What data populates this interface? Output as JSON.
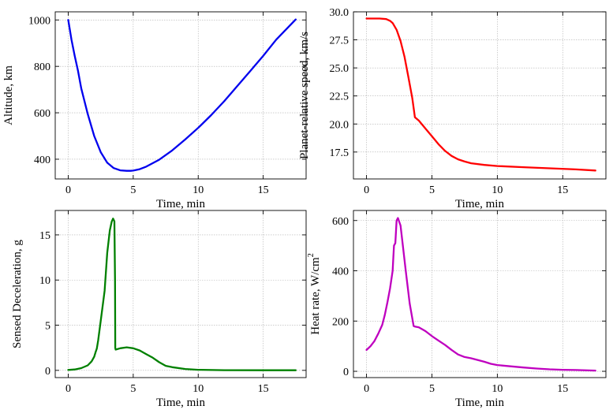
{
  "chart_data": [
    {
      "type": "line",
      "xlabel": "Time, min",
      "ylabel": "Altitude, km",
      "xlim": [
        -1.0,
        18.3
      ],
      "ylim": [
        315,
        1035
      ],
      "xticks": [
        0,
        5,
        10,
        15
      ],
      "yticks": [
        400,
        600,
        800,
        1000
      ],
      "yticklabels": [
        "400",
        "600",
        "800",
        "1000"
      ],
      "grid": true,
      "color": "#0000ee",
      "series": [
        {
          "x": [
            0,
            0.25,
            0.5,
            0.75,
            1.0,
            1.5,
            2.0,
            2.5,
            3.0,
            3.5,
            4.0,
            4.5,
            4.8,
            5.0,
            5.5,
            6.0,
            7.0,
            8.0,
            9.0,
            10.0,
            11.0,
            12.0,
            13.0,
            14.0,
            15.0,
            16.0,
            17.5
          ],
          "y": [
            1000,
            915,
            845,
            782,
            705,
            595,
            500,
            430,
            385,
            362,
            352,
            350,
            350,
            351,
            357,
            368,
            398,
            438,
            485,
            535,
            590,
            650,
            715,
            780,
            845,
            915,
            1002
          ]
        }
      ]
    },
    {
      "type": "line",
      "xlabel": "Time, min",
      "ylabel": "Planet-relative speed, km/s",
      "xlim": [
        -1.0,
        18.3
      ],
      "ylim": [
        15.1,
        30.0
      ],
      "xticks": [
        0,
        5,
        10,
        15
      ],
      "yticks": [
        17.5,
        20.0,
        22.5,
        25.0,
        27.5,
        30.0
      ],
      "yticklabels": [
        "17.5",
        "20.0",
        "22.5",
        "25.0",
        "27.5",
        "30.0"
      ],
      "grid": true,
      "color": "#ff0000",
      "series": [
        {
          "x": [
            0,
            0.5,
            1.0,
            1.5,
            1.8,
            2.0,
            2.3,
            2.6,
            2.9,
            3.2,
            3.5,
            3.7,
            4.0,
            4.5,
            5.0,
            5.5,
            6.0,
            6.5,
            7.0,
            7.5,
            8.0,
            9.0,
            10.0,
            12.0,
            14.0,
            16.0,
            17.5
          ],
          "y": [
            29.4,
            29.4,
            29.4,
            29.35,
            29.2,
            29.0,
            28.4,
            27.4,
            26.0,
            24.2,
            22.3,
            20.6,
            20.3,
            19.6,
            18.9,
            18.2,
            17.6,
            17.15,
            16.85,
            16.65,
            16.5,
            16.35,
            16.25,
            16.15,
            16.05,
            15.95,
            15.85
          ]
        }
      ]
    },
    {
      "type": "line",
      "xlabel": "Time, min",
      "ylabel": "Sensed Deceleration, g",
      "xlim": [
        -1.0,
        18.3
      ],
      "ylim": [
        -0.8,
        17.7
      ],
      "xticks": [
        0,
        5,
        10,
        15
      ],
      "yticks": [
        0,
        5,
        10,
        15
      ],
      "yticklabels": [
        "0",
        "5",
        "10",
        "15"
      ],
      "grid": true,
      "color": "#008000",
      "series": [
        {
          "x": [
            0,
            0.5,
            1.0,
            1.5,
            1.8,
            2.0,
            2.1,
            2.2,
            2.3,
            2.5,
            2.8,
            3.0,
            3.2,
            3.35,
            3.45,
            3.55,
            3.6,
            3.62,
            3.65,
            4.0,
            4.5,
            5.0,
            5.5,
            6.0,
            6.5,
            7.0,
            7.5,
            8.0,
            9.0,
            10.0,
            12.0,
            15.0,
            17.5
          ],
          "y": [
            0.05,
            0.1,
            0.25,
            0.55,
            1.0,
            1.5,
            2.0,
            2.4,
            3.3,
            5.5,
            8.8,
            13.0,
            15.5,
            16.5,
            16.8,
            16.5,
            10.0,
            2.5,
            2.3,
            2.45,
            2.55,
            2.45,
            2.2,
            1.8,
            1.4,
            0.9,
            0.5,
            0.35,
            0.15,
            0.06,
            0.02,
            0.01,
            0.01
          ]
        }
      ]
    },
    {
      "type": "line",
      "xlabel": "Time, min",
      "ylabel": "Heat rate, W/cm",
      "ylabel_sup": "2",
      "xlim": [
        -1.0,
        18.3
      ],
      "ylim": [
        -25,
        640
      ],
      "xticks": [
        0,
        5,
        10,
        15
      ],
      "yticks": [
        0,
        200,
        400,
        600
      ],
      "yticklabels": [
        "0",
        "200",
        "400",
        "600"
      ],
      "grid": true,
      "color": "#bf00bf",
      "series": [
        {
          "x": [
            0,
            0.3,
            0.6,
            0.9,
            1.2,
            1.4,
            1.6,
            1.8,
            2.0,
            2.05,
            2.1,
            2.2,
            2.3,
            2.4,
            2.6,
            2.8,
            3.0,
            3.3,
            3.6,
            3.7,
            4.0,
            4.5,
            5.0,
            5.5,
            6.0,
            6.5,
            7.0,
            7.5,
            8.0,
            9.0,
            9.5,
            10.0,
            11.0,
            12.0,
            13.0,
            14.0,
            15.0,
            16.0,
            17.5
          ],
          "y": [
            85,
            100,
            120,
            150,
            185,
            225,
            275,
            330,
            400,
            455,
            500,
            510,
            600,
            610,
            580,
            490,
            400,
            270,
            180,
            178,
            175,
            160,
            140,
            122,
            105,
            85,
            67,
            57,
            52,
            38,
            30,
            25,
            20,
            15,
            11,
            8,
            6,
            5,
            3
          ]
        }
      ]
    }
  ]
}
